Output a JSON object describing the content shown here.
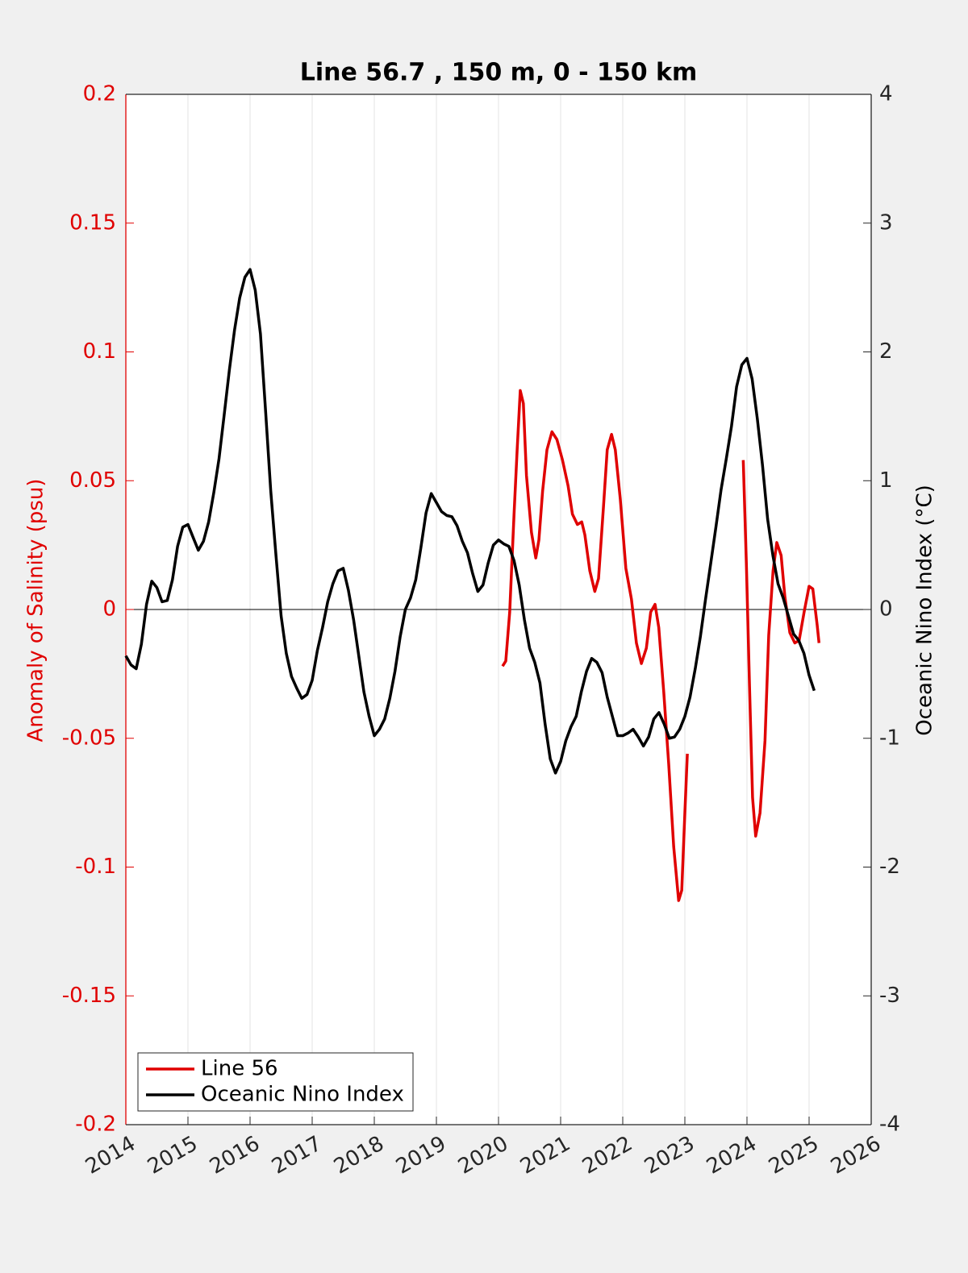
{
  "chart_data": {
    "type": "line",
    "title": "Line 56.7 , 150 m, 0 - 150 km",
    "ylabel": "Anomaly of Salinity (psu)",
    "y2label": "Oceanic Nino Index (°C)",
    "xlim": [
      2014,
      2026
    ],
    "xticks": [
      2014,
      2015,
      2016,
      2017,
      2018,
      2019,
      2020,
      2021,
      2022,
      2023,
      2024,
      2025,
      2026
    ],
    "ylim": [
      -0.2,
      0.2
    ],
    "yticks": [
      -0.2,
      -0.15,
      -0.1,
      -0.05,
      0,
      0.05,
      0.1,
      0.15,
      0.2
    ],
    "y2lim": [
      -4,
      4
    ],
    "y2ticks": [
      -4,
      -3,
      -2,
      -1,
      0,
      1,
      2,
      3,
      4
    ],
    "xgrid": true,
    "legend": "lower left",
    "series": [
      {
        "name": "Line 56",
        "color": "#e00000",
        "axis": "y",
        "x": [
          2020.065,
          2020.117,
          2020.18,
          2020.25,
          2020.3,
          2020.35,
          2020.4,
          2020.45,
          2020.53,
          2020.6,
          2020.65,
          2020.71,
          2020.78,
          2020.86,
          2020.94,
          2021.03,
          2021.12,
          2021.19,
          2021.27,
          2021.34,
          2021.39,
          2021.47,
          2021.55,
          2021.61,
          2021.69,
          2021.75,
          2021.82,
          2021.88,
          2021.96,
          2022.05,
          2022.14,
          2022.22,
          2022.3,
          2022.38,
          2022.45,
          2022.52,
          2022.58,
          2022.66,
          2022.74,
          2022.82,
          2022.9,
          2022.95,
          2023.0,
          2023.04,
          2023.5,
          2023.94,
          2023.99,
          2024.04,
          2024.09,
          2024.14,
          2024.21,
          2024.29,
          2024.35,
          2024.42,
          2024.48,
          2024.55,
          2024.61,
          2024.69,
          2024.77,
          2024.84,
          2024.92,
          2025.0,
          2025.06,
          2025.13,
          2025.16
        ],
        "values": [
          -0.022,
          -0.02,
          -0.001,
          0.037,
          0.062,
          0.085,
          0.08,
          0.052,
          0.03,
          0.02,
          0.027,
          0.046,
          0.062,
          0.069,
          0.066,
          0.058,
          0.048,
          0.037,
          0.033,
          0.034,
          0.029,
          0.015,
          0.007,
          0.012,
          0.04,
          0.062,
          0.068,
          0.062,
          0.043,
          0.016,
          0.004,
          -0.013,
          -0.021,
          -0.015,
          -0.001,
          0.002,
          -0.007,
          -0.032,
          -0.06,
          -0.092,
          -0.113,
          -0.109,
          -0.079,
          -0.056,
          null,
          0.058,
          0.018,
          -0.029,
          -0.073,
          -0.088,
          -0.079,
          -0.051,
          -0.01,
          0.015,
          0.026,
          0.021,
          0.005,
          -0.009,
          -0.013,
          -0.012,
          -0.001,
          0.009,
          0.008,
          -0.006,
          -0.013
        ]
      },
      {
        "name": "Oceanic Nino Index",
        "color": "#000000",
        "axis": "y2",
        "x": [
          2014,
          2014.083,
          2014.167,
          2014.25,
          2014.333,
          2014.417,
          2014.5,
          2014.583,
          2014.667,
          2014.75,
          2014.833,
          2014.917,
          2015,
          2015.083,
          2015.167,
          2015.25,
          2015.333,
          2015.417,
          2015.5,
          2015.583,
          2015.667,
          2015.75,
          2015.833,
          2015.917,
          2016,
          2016.083,
          2016.167,
          2016.25,
          2016.333,
          2016.417,
          2016.5,
          2016.583,
          2016.667,
          2016.75,
          2016.833,
          2016.917,
          2017,
          2017.083,
          2017.167,
          2017.25,
          2017.333,
          2017.417,
          2017.5,
          2017.583,
          2017.667,
          2017.75,
          2017.833,
          2017.917,
          2018,
          2018.083,
          2018.167,
          2018.25,
          2018.333,
          2018.417,
          2018.5,
          2018.583,
          2018.667,
          2018.75,
          2018.833,
          2018.917,
          2019,
          2019.083,
          2019.167,
          2019.25,
          2019.333,
          2019.417,
          2019.5,
          2019.583,
          2019.667,
          2019.75,
          2019.833,
          2019.917,
          2020,
          2020.083,
          2020.167,
          2020.25,
          2020.333,
          2020.417,
          2020.5,
          2020.583,
          2020.667,
          2020.75,
          2020.833,
          2020.917,
          2021,
          2021.083,
          2021.167,
          2021.25,
          2021.333,
          2021.417,
          2021.5,
          2021.583,
          2021.667,
          2021.75,
          2021.833,
          2021.917,
          2022,
          2022.083,
          2022.167,
          2022.25,
          2022.333,
          2022.417,
          2022.5,
          2022.583,
          2022.667,
          2022.75,
          2022.833,
          2022.917,
          2023,
          2023.083,
          2023.167,
          2023.25,
          2023.333,
          2023.417,
          2023.5,
          2023.583,
          2023.667,
          2023.75,
          2023.833,
          2023.917,
          2024,
          2024.083,
          2024.167,
          2024.25,
          2024.333,
          2024.417,
          2024.5,
          2024.583,
          2024.667,
          2024.75,
          2024.833,
          2024.917,
          2025,
          2025.083
        ],
        "values": [
          -0.36,
          -0.43,
          -0.46,
          -0.27,
          0.04,
          0.22,
          0.17,
          0.06,
          0.07,
          0.23,
          0.49,
          0.64,
          0.66,
          0.56,
          0.46,
          0.53,
          0.68,
          0.91,
          1.17,
          1.51,
          1.86,
          2.17,
          2.42,
          2.58,
          2.64,
          2.48,
          2.14,
          1.54,
          0.92,
          0.42,
          -0.05,
          -0.34,
          -0.52,
          -0.61,
          -0.69,
          -0.66,
          -0.55,
          -0.32,
          -0.14,
          0.06,
          0.2,
          0.3,
          0.32,
          0.15,
          -0.08,
          -0.36,
          -0.64,
          -0.83,
          -0.98,
          -0.93,
          -0.85,
          -0.69,
          -0.48,
          -0.21,
          0,
          0.09,
          0.23,
          0.48,
          0.75,
          0.9,
          0.83,
          0.76,
          0.73,
          0.72,
          0.65,
          0.53,
          0.44,
          0.28,
          0.14,
          0.19,
          0.36,
          0.5,
          0.54,
          0.51,
          0.49,
          0.38,
          0.19,
          -0.08,
          -0.3,
          -0.41,
          -0.57,
          -0.89,
          -1.16,
          -1.27,
          -1.18,
          -1.02,
          -0.91,
          -0.83,
          -0.64,
          -0.48,
          -0.38,
          -0.41,
          -0.49,
          -0.68,
          -0.83,
          -0.98,
          -0.98,
          -0.96,
          -0.93,
          -0.99,
          -1.06,
          -0.99,
          -0.85,
          -0.8,
          -0.89,
          -1.0,
          -0.99,
          -0.93,
          -0.83,
          -0.68,
          -0.46,
          -0.21,
          0.08,
          0.36,
          0.64,
          0.93,
          1.17,
          1.42,
          1.73,
          1.9,
          1.95,
          1.79,
          1.48,
          1.12,
          0.7,
          0.42,
          0.2,
          0.09,
          -0.05,
          -0.19,
          -0.24,
          -0.34,
          -0.51,
          -0.63
        ]
      }
    ]
  }
}
